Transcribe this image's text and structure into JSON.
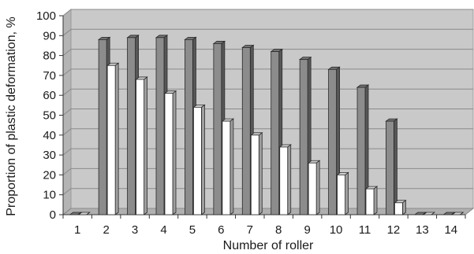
{
  "chart_data": {
    "type": "bar",
    "style": "3d-clustered-column",
    "xlabel": "Number of roller",
    "ylabel": "Proportion of plastic deformation, %",
    "ylim": [
      0,
      100
    ],
    "ytick_step": 10,
    "grid": true,
    "legend": "none",
    "categories": [
      "1",
      "2",
      "3",
      "4",
      "5",
      "6",
      "7",
      "8",
      "9",
      "10",
      "11",
      "12",
      "13",
      "14"
    ],
    "series": [
      {
        "color": "#8c8c8c",
        "values": [
          0,
          88,
          89,
          89,
          88,
          86,
          84,
          82,
          78,
          73,
          64,
          47,
          0,
          0
        ]
      },
      {
        "color": "#ffffff",
        "values": [
          0,
          75,
          68,
          61,
          54,
          47,
          40,
          34,
          26,
          20,
          13,
          6,
          0,
          0
        ]
      }
    ],
    "colors": {
      "plot_background": "#c9c9c9",
      "gridline": "#8a8a8a",
      "bar_outline": "#2a2a2a"
    }
  }
}
